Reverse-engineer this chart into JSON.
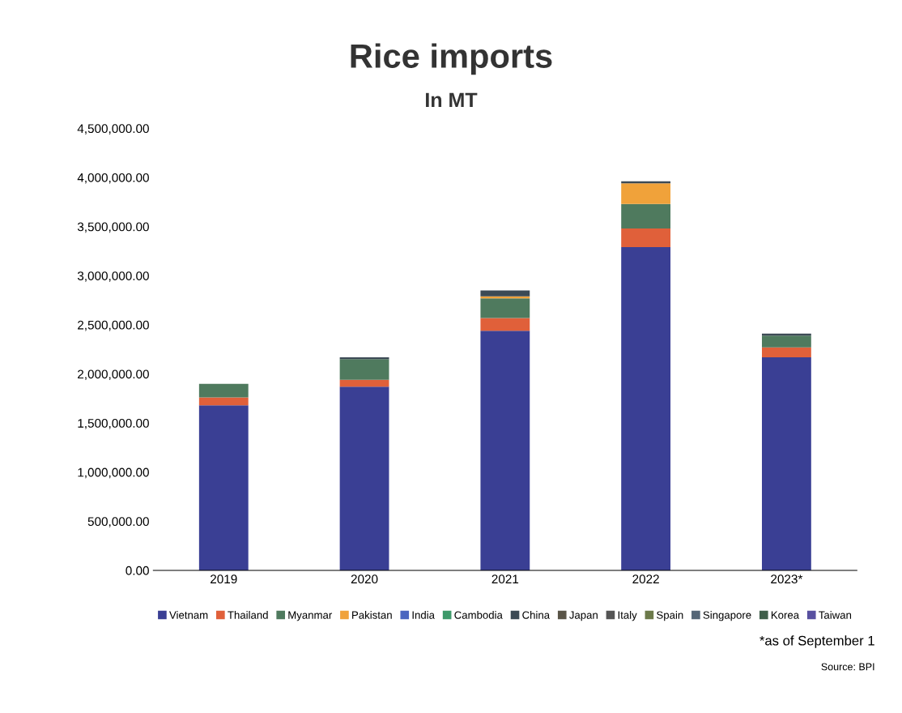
{
  "chart_data": {
    "type": "bar",
    "title": "Rice imports",
    "subtitle": "In MT",
    "categories": [
      "2019",
      "2020",
      "2021",
      "2022",
      "2023*"
    ],
    "stacked": true,
    "grid": false,
    "legend": "bottom",
    "ylim": [
      0,
      4500000
    ],
    "yticks": [
      {
        "value": 0,
        "label": "0.00"
      },
      {
        "value": 500000,
        "label": "500,000.00"
      },
      {
        "value": 1000000,
        "label": "1,000,000.00"
      },
      {
        "value": 1500000,
        "label": "1,500,000.00"
      },
      {
        "value": 2000000,
        "label": "2,000,000.00"
      },
      {
        "value": 2500000,
        "label": "2,500,000.00"
      },
      {
        "value": 3000000,
        "label": "3,000,000.00"
      },
      {
        "value": 3500000,
        "label": "3,500,000.00"
      },
      {
        "value": 4000000,
        "label": "4,000,000.00"
      },
      {
        "value": 4500000,
        "label": "4,500,000.00"
      }
    ],
    "series": [
      {
        "name": "Vietnam",
        "color": "#3a3f94",
        "values": [
          1680000,
          1870000,
          2440000,
          3290000,
          2170000
        ]
      },
      {
        "name": "Thailand",
        "color": "#e0603a",
        "values": [
          80000,
          70000,
          130000,
          190000,
          100000
        ]
      },
      {
        "name": "Myanmar",
        "color": "#4f7a5e",
        "values": [
          140000,
          210000,
          200000,
          250000,
          120000
        ]
      },
      {
        "name": "Pakistan",
        "color": "#f0a23a",
        "values": [
          0,
          0,
          20000,
          210000,
          0
        ]
      },
      {
        "name": "India",
        "color": "#4a66c0",
        "values": [
          0,
          0,
          0,
          0,
          0
        ]
      },
      {
        "name": "Cambodia",
        "color": "#3d9a6a",
        "values": [
          0,
          0,
          0,
          0,
          0
        ]
      },
      {
        "name": "China",
        "color": "#3c4a55",
        "values": [
          0,
          20000,
          60000,
          20000,
          20000
        ]
      },
      {
        "name": "Japan",
        "color": "#5a5548",
        "values": [
          0,
          0,
          0,
          0,
          0
        ]
      },
      {
        "name": "Italy",
        "color": "#555555",
        "values": [
          0,
          0,
          0,
          0,
          0
        ]
      },
      {
        "name": "Spain",
        "color": "#6c7a4a",
        "values": [
          0,
          0,
          0,
          0,
          0
        ]
      },
      {
        "name": "Singapore",
        "color": "#556677",
        "values": [
          0,
          0,
          0,
          0,
          0
        ]
      },
      {
        "name": "Korea",
        "color": "#3f5f4a",
        "values": [
          0,
          0,
          0,
          0,
          0
        ]
      },
      {
        "name": "Taiwan",
        "color": "#5850a0",
        "values": [
          0,
          0,
          0,
          0,
          0
        ]
      }
    ],
    "annotations": [
      "*as of September 1",
      "Source: BPI"
    ]
  }
}
